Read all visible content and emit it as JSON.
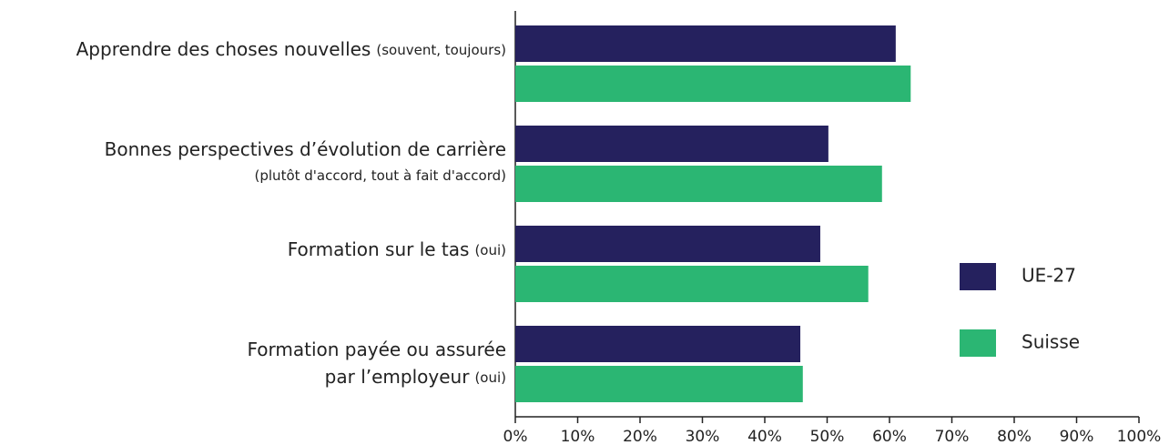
{
  "chart_data": {
    "type": "barh",
    "categories": [
      {
        "lines": [
          "Apprendre des choses nouvelles"
        ],
        "note": "(souvent, toujours)"
      },
      {
        "lines": [
          "Bonnes perspectives d’évolution de carrière"
        ],
        "note": "(plutôt d'accord, tout à fait d'accord)"
      },
      {
        "lines": [
          "Formation sur le tas"
        ],
        "note": "(oui)"
      },
      {
        "lines": [
          "Formation payée ou assurée",
          "par l’employeur"
        ],
        "note": "(oui)"
      }
    ],
    "series": [
      {
        "name": "UE-27",
        "color": "#25215e",
        "values": [
          61,
          50.2,
          48.9,
          45.7
        ]
      },
      {
        "name": "Suisse",
        "color": "#2bb673",
        "values": [
          63.4,
          58.8,
          56.6,
          46.1
        ]
      }
    ],
    "xlim": [
      0,
      100
    ],
    "xticks": [
      {
        "value": 0,
        "label": "0%"
      },
      {
        "value": 10,
        "label": "10%"
      },
      {
        "value": 20,
        "label": "20%"
      },
      {
        "value": 30,
        "label": "30%"
      },
      {
        "value": 40,
        "label": "40%"
      },
      {
        "value": 50,
        "label": "50%"
      },
      {
        "value": 60,
        "label": "60%"
      },
      {
        "value": 70,
        "label": "70%"
      },
      {
        "value": 80,
        "label": "80%"
      },
      {
        "value": 90,
        "label": "90%"
      },
      {
        "value": 100,
        "label": "100%"
      }
    ],
    "legend": "right"
  }
}
